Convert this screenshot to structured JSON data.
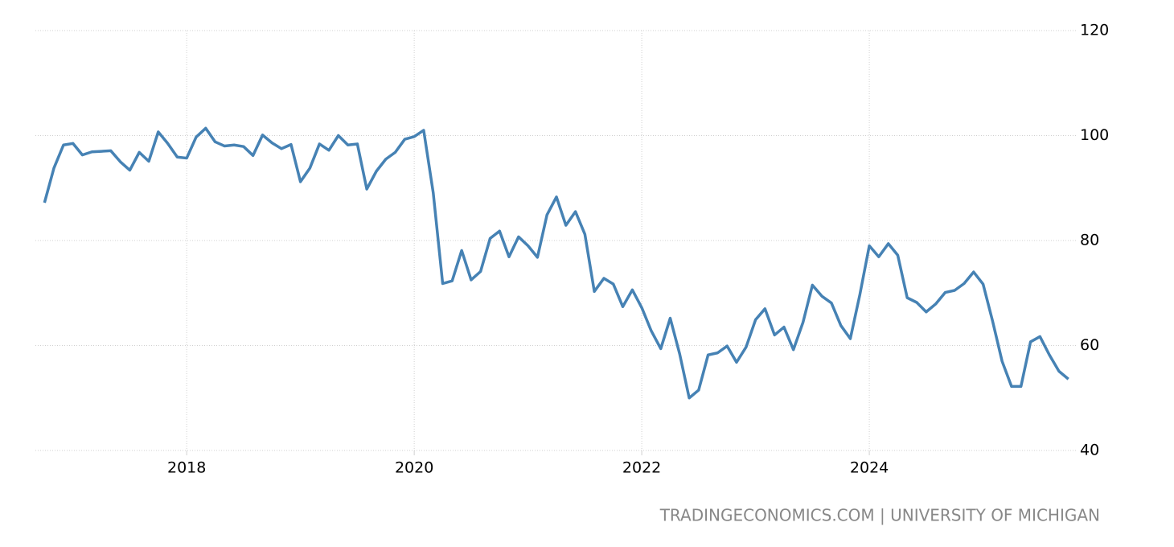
{
  "chart_data": {
    "type": "line",
    "source": "TRADINGECONOMICS.COM | UNIVERSITY OF MICHIGAN",
    "x": [
      2016.75,
      2016.833,
      2016.917,
      2017,
      2017.083,
      2017.167,
      2017.25,
      2017.333,
      2017.417,
      2017.5,
      2017.583,
      2017.667,
      2017.75,
      2017.833,
      2017.917,
      2018,
      2018.083,
      2018.167,
      2018.25,
      2018.333,
      2018.417,
      2018.5,
      2018.583,
      2018.667,
      2018.75,
      2018.833,
      2018.917,
      2019,
      2019.083,
      2019.167,
      2019.25,
      2019.333,
      2019.417,
      2019.5,
      2019.583,
      2019.667,
      2019.75,
      2019.833,
      2019.917,
      2020,
      2020.083,
      2020.167,
      2020.25,
      2020.333,
      2020.417,
      2020.5,
      2020.583,
      2020.667,
      2020.75,
      2020.833,
      2020.917,
      2021,
      2021.083,
      2021.167,
      2021.25,
      2021.333,
      2021.417,
      2021.5,
      2021.583,
      2021.667,
      2021.75,
      2021.833,
      2021.917,
      2022,
      2022.083,
      2022.167,
      2022.25,
      2022.333,
      2022.417,
      2022.5,
      2022.583,
      2022.667,
      2022.75,
      2022.833,
      2022.917,
      2023,
      2023.083,
      2023.167,
      2023.25,
      2023.333,
      2023.417,
      2023.5,
      2023.583,
      2023.667,
      2023.75,
      2023.833,
      2023.917,
      2024,
      2024.083,
      2024.167,
      2024.25,
      2024.333,
      2024.417,
      2024.5,
      2024.583,
      2024.667,
      2024.75,
      2024.833,
      2024.917,
      2025,
      2025.083,
      2025.167,
      2025.25,
      2025.333,
      2025.417,
      2025.5,
      2025.583,
      2025.667,
      2025.75
    ],
    "series": [
      {
        "color": "#4682b4",
        "values": [
          87.2,
          93.8,
          98.2,
          98.5,
          96.3,
          96.9,
          97.0,
          97.1,
          95.0,
          93.4,
          96.8,
          95.1,
          100.7,
          98.5,
          95.9,
          95.7,
          99.7,
          101.4,
          98.8,
          98.0,
          98.2,
          97.9,
          96.2,
          100.1,
          98.6,
          97.5,
          98.3,
          91.2,
          93.8,
          98.4,
          97.2,
          100.0,
          98.2,
          98.4,
          89.8,
          93.2,
          95.5,
          96.8,
          99.3,
          99.8,
          101.0,
          89.1,
          71.8,
          72.3,
          78.1,
          72.5,
          74.1,
          80.4,
          81.8,
          76.9,
          80.7,
          79.0,
          76.8,
          84.9,
          88.3,
          82.9,
          85.5,
          81.2,
          70.3,
          72.8,
          71.7,
          67.4,
          70.6,
          67.2,
          62.8,
          59.4,
          65.2,
          58.4,
          50.0,
          51.5,
          58.2,
          58.6,
          59.9,
          56.8,
          59.7,
          64.9,
          67.0,
          62.0,
          63.5,
          59.2,
          64.4,
          71.5,
          69.4,
          68.1,
          63.8,
          61.3,
          69.7,
          79.0,
          76.9,
          79.4,
          77.2,
          69.1,
          68.2,
          66.4,
          67.9,
          70.1,
          70.5,
          71.8,
          74.0,
          71.7,
          64.7,
          57.0,
          52.2,
          52.2,
          60.7,
          61.7,
          58.2,
          55.1,
          53.6
        ]
      }
    ],
    "xlim": [
      2016.67,
      2025.83
    ],
    "xticks": [
      2018,
      2020,
      2022,
      2024
    ],
    "ylim": [
      40,
      120
    ],
    "yticks": [
      40,
      60,
      80,
      100,
      120
    ],
    "grid": true
  }
}
